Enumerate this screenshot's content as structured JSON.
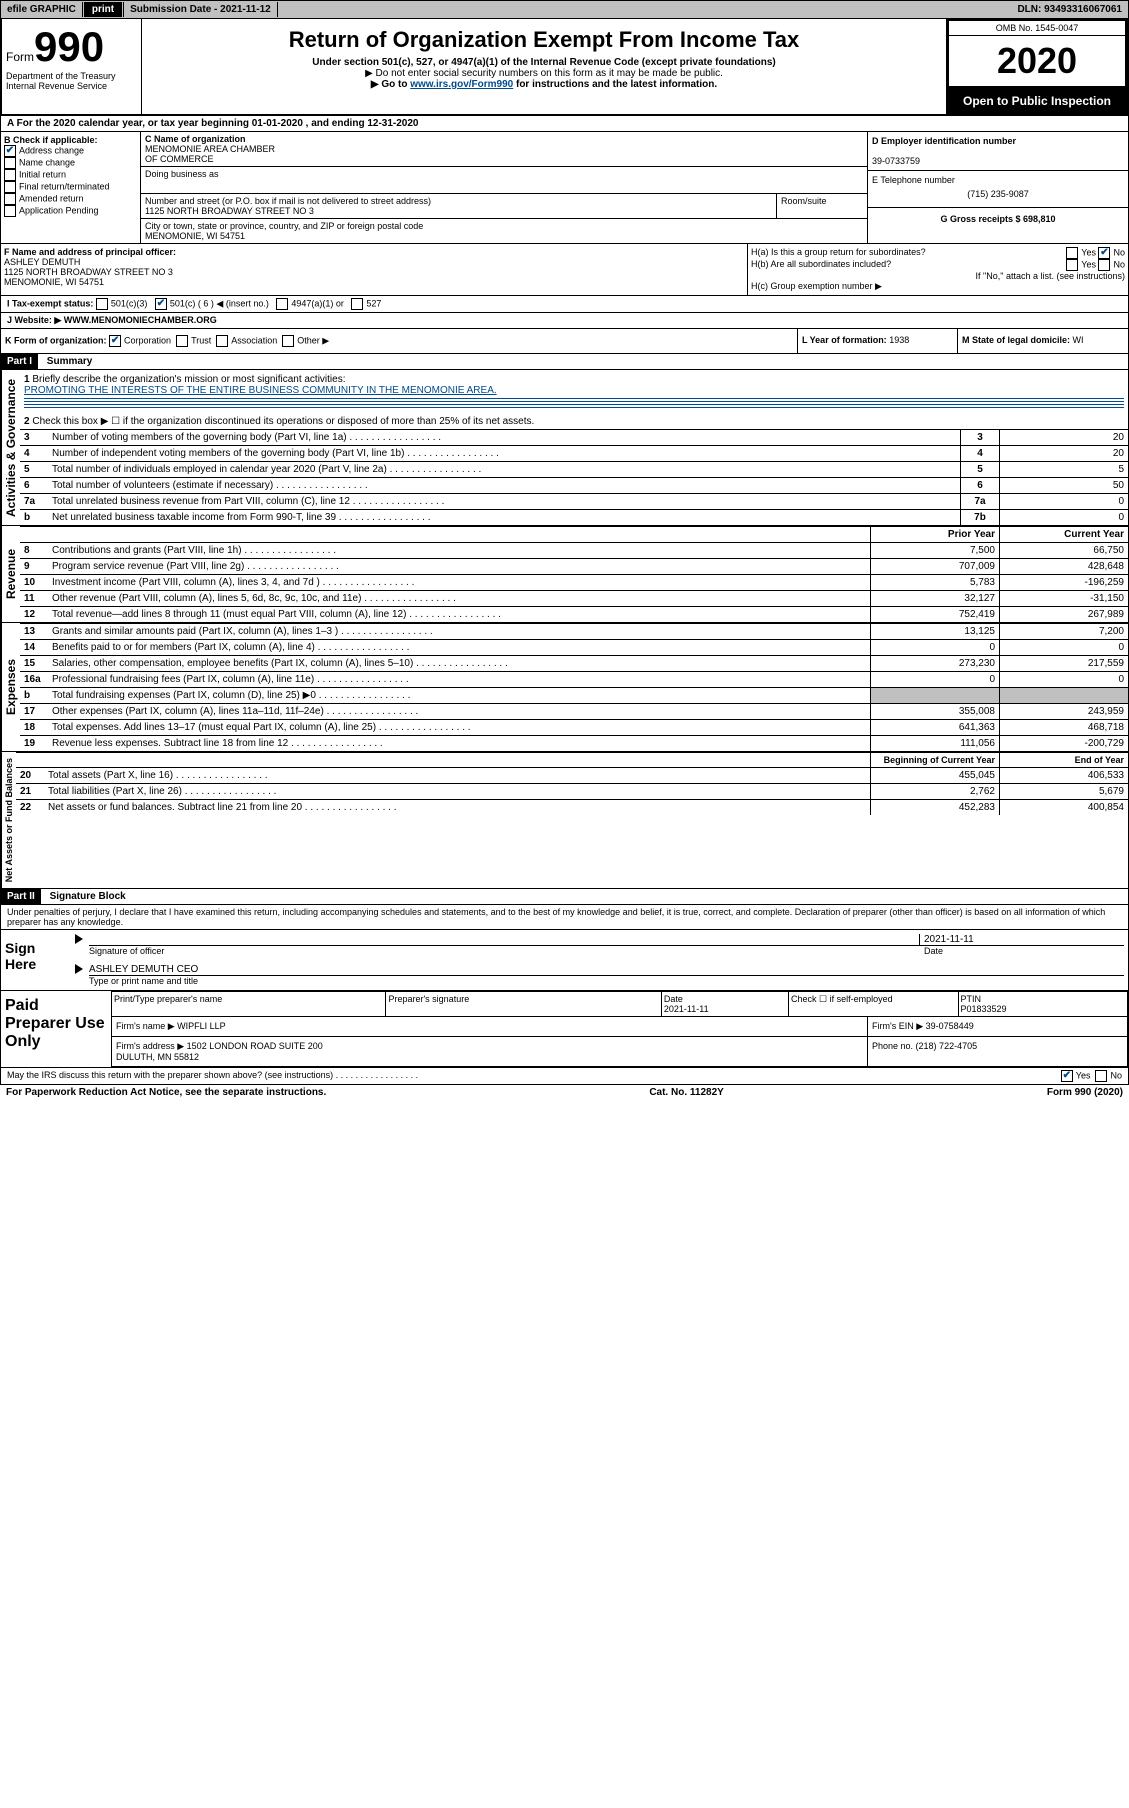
{
  "topbar": {
    "efile": "efile GRAPHIC",
    "print": "print",
    "subdate_lbl": "Submission Date - ",
    "subdate": "2021-11-12",
    "dln_lbl": "DLN: ",
    "dln": "93493316067061"
  },
  "header": {
    "form_word": "Form",
    "form_num": "990",
    "dept": "Department of the Treasury\nInternal Revenue Service",
    "title": "Return of Organization Exempt From Income Tax",
    "sub1": "Under section 501(c), 527, or 4947(a)(1) of the Internal Revenue Code (except private foundations)",
    "sub2": "▶ Do not enter social security numbers on this form as it may be made be public.",
    "sub3a": "▶ Go to ",
    "sub3_link": "www.irs.gov/Form990",
    "sub3b": " for instructions and the latest information.",
    "omb": "OMB No. 1545-0047",
    "year": "2020",
    "inspect": "Open to Public Inspection"
  },
  "lineA": {
    "prefix": "A For the 2020 calendar year, or tax year beginning ",
    "begin": "01-01-2020",
    "mid": " , and ending ",
    "end": "12-31-2020"
  },
  "boxB": {
    "title": "B Check if applicable:",
    "items": [
      {
        "label": "Address change",
        "checked": true
      },
      {
        "label": "Name change",
        "checked": false
      },
      {
        "label": "Initial return",
        "checked": false
      },
      {
        "label": "Final return/terminated",
        "checked": false
      },
      {
        "label": "Amended return",
        "checked": false
      },
      {
        "label": "Application Pending",
        "checked": false
      }
    ]
  },
  "boxC": {
    "name_lbl": "C Name of organization",
    "name": "MENOMONIE AREA CHAMBER\nOF COMMERCE",
    "dba_lbl": "Doing business as",
    "dba": "",
    "street_lbl": "Number and street (or P.O. box if mail is not delivered to street address)",
    "room_lbl": "Room/suite",
    "street": "1125 NORTH BROADWAY STREET NO 3",
    "city_lbl": "City or town, state or province, country, and ZIP or foreign postal code",
    "city": "MENOMONIE, WI  54751"
  },
  "boxD": {
    "lbl": "D Employer identification number",
    "val": "39-0733759"
  },
  "boxE": {
    "lbl": "E Telephone number",
    "val": "(715) 235-9087"
  },
  "boxG": {
    "lbl": "G Gross receipts $ ",
    "val": "698,810"
  },
  "boxF": {
    "lbl": "F Name and address of principal officer:",
    "name": "ASHLEY DEMUTH",
    "addr1": "1125 NORTH BROADWAY STREET NO 3",
    "addr2": "MENOMONIE, WI  54751"
  },
  "boxH": {
    "a": "H(a)  Is this a group return for subordinates?",
    "a_yes": "Yes",
    "a_no": "No",
    "b": "H(b)  Are all subordinates included?",
    "b_yes": "Yes",
    "b_no": "No",
    "note": "If \"No,\" attach a list. (see instructions)",
    "c": "H(c)  Group exemption number ▶"
  },
  "boxI": {
    "lbl": "I Tax-exempt status:",
    "o1": "501(c)(3)",
    "o2": "501(c) ( 6 ) ◀ (insert no.)",
    "o3": "4947(a)(1) or",
    "o4": "527"
  },
  "boxJ": {
    "lbl": "J Website: ▶",
    "val": " WWW.MENOMONIECHAMBER.ORG"
  },
  "boxK": {
    "lbl": "K Form of organization:",
    "o1": "Corporation",
    "o2": "Trust",
    "o3": "Association",
    "o4": "Other ▶"
  },
  "boxL": {
    "lbl": "L Year of formation: ",
    "val": "1938"
  },
  "boxM": {
    "lbl": "M State of legal domicile: ",
    "val": "WI"
  },
  "part1": {
    "hdr": "Part I",
    "title": "Summary"
  },
  "summary": {
    "q1": "Briefly describe the organization's mission or most significant activities:",
    "q1_ans": "PROMOTING THE INTERESTS OF THE ENTIRE BUSINESS COMMUNITY IN THE MENOMONIE AREA.",
    "q2": "Check this box ▶ ☐  if the organization discontinued its operations or disposed of more than 25% of its net assets.",
    "rows_gov": [
      {
        "n": "3",
        "t": "Number of voting members of the governing body (Part VI, line 1a)",
        "box": "3",
        "v": "20"
      },
      {
        "n": "4",
        "t": "Number of independent voting members of the governing body (Part VI, line 1b)",
        "box": "4",
        "v": "20"
      },
      {
        "n": "5",
        "t": "Total number of individuals employed in calendar year 2020 (Part V, line 2a)",
        "box": "5",
        "v": "5"
      },
      {
        "n": "6",
        "t": "Total number of volunteers (estimate if necessary)",
        "box": "6",
        "v": "50"
      },
      {
        "n": "7a",
        "t": "Total unrelated business revenue from Part VIII, column (C), line 12",
        "box": "7a",
        "v": "0"
      },
      {
        "n": "b",
        "t": "Net unrelated business taxable income from Form 990-T, line 39",
        "box": "7b",
        "v": "0"
      }
    ],
    "colhdr": {
      "py": "Prior Year",
      "cy": "Current Year"
    },
    "rows_rev": [
      {
        "n": "8",
        "t": "Contributions and grants (Part VIII, line 1h)",
        "py": "7,500",
        "cy": "66,750"
      },
      {
        "n": "9",
        "t": "Program service revenue (Part VIII, line 2g)",
        "py": "707,009",
        "cy": "428,648"
      },
      {
        "n": "10",
        "t": "Investment income (Part VIII, column (A), lines 3, 4, and 7d )",
        "py": "5,783",
        "cy": "-196,259"
      },
      {
        "n": "11",
        "t": "Other revenue (Part VIII, column (A), lines 5, 6d, 8c, 9c, 10c, and 11e)",
        "py": "32,127",
        "cy": "-31,150"
      },
      {
        "n": "12",
        "t": "Total revenue—add lines 8 through 11 (must equal Part VIII, column (A), line 12)",
        "py": "752,419",
        "cy": "267,989"
      }
    ],
    "rows_exp": [
      {
        "n": "13",
        "t": "Grants and similar amounts paid (Part IX, column (A), lines 1–3 )",
        "py": "13,125",
        "cy": "7,200"
      },
      {
        "n": "14",
        "t": "Benefits paid to or for members (Part IX, column (A), line 4)",
        "py": "0",
        "cy": "0"
      },
      {
        "n": "15",
        "t": "Salaries, other compensation, employee benefits (Part IX, column (A), lines 5–10)",
        "py": "273,230",
        "cy": "217,559"
      },
      {
        "n": "16a",
        "t": "Professional fundraising fees (Part IX, column (A), line 11e)",
        "py": "0",
        "cy": "0"
      },
      {
        "n": "b",
        "t": "Total fundraising expenses (Part IX, column (D), line 25) ▶0",
        "py": "",
        "cy": "",
        "shade": true
      },
      {
        "n": "17",
        "t": "Other expenses (Part IX, column (A), lines 11a–11d, 11f–24e)",
        "py": "355,008",
        "cy": "243,959"
      },
      {
        "n": "18",
        "t": "Total expenses. Add lines 13–17 (must equal Part IX, column (A), line 25)",
        "py": "641,363",
        "cy": "468,718"
      },
      {
        "n": "19",
        "t": "Revenue less expenses. Subtract line 18 from line 12",
        "py": "111,056",
        "cy": "-200,729"
      }
    ],
    "colhdr2": {
      "py": "Beginning of Current Year",
      "cy": "End of Year"
    },
    "rows_net": [
      {
        "n": "20",
        "t": "Total assets (Part X, line 16)",
        "py": "455,045",
        "cy": "406,533"
      },
      {
        "n": "21",
        "t": "Total liabilities (Part X, line 26)",
        "py": "2,762",
        "cy": "5,679"
      },
      {
        "n": "22",
        "t": "Net assets or fund balances. Subtract line 21 from line 20",
        "py": "452,283",
        "cy": "400,854"
      }
    ],
    "vlabels": {
      "gov": "Activities & Governance",
      "rev": "Revenue",
      "exp": "Expenses",
      "net": "Net Assets or Fund Balances"
    }
  },
  "part2": {
    "hdr": "Part II",
    "title": "Signature Block",
    "decl": "Under penalties of perjury, I declare that I have examined this return, including accompanying schedules and statements, and to the best of my knowledge and belief, it is true, correct, and complete. Declaration of preparer (other than officer) is based on all information of which preparer has any knowledge."
  },
  "sign": {
    "here": "Sign Here",
    "sig_lbl": "Signature of officer",
    "date_lbl": "Date",
    "date": "2021-11-11",
    "name": "ASHLEY DEMUTH  CEO",
    "name_lbl": "Type or print name and title"
  },
  "paid": {
    "here": "Paid Preparer Use Only",
    "c1": "Print/Type preparer's name",
    "c2": "Preparer's signature",
    "c3": "Date",
    "c3v": "2021-11-11",
    "c4": "Check ☐ if self-employed",
    "c5": "PTIN",
    "c5v": "P01833529",
    "firm_lbl": "Firm's name    ▶",
    "firm": "WIPFLI LLP",
    "ein_lbl": "Firm's EIN ▶",
    "ein": "39-0758449",
    "addr_lbl": "Firm's address ▶",
    "addr": "1502 LONDON ROAD SUITE 200\nDULUTH, MN  55812",
    "phone_lbl": "Phone no. ",
    "phone": "(218) 722-4705"
  },
  "irs_q": "May the IRS discuss this return with the preparer shown above? (see instructions)",
  "footer": {
    "l": "For Paperwork Reduction Act Notice, see the separate instructions.",
    "m": "Cat. No. 11282Y",
    "r": "Form 990 (2020)"
  },
  "yesno": {
    "yes": "Yes",
    "no": "No"
  }
}
